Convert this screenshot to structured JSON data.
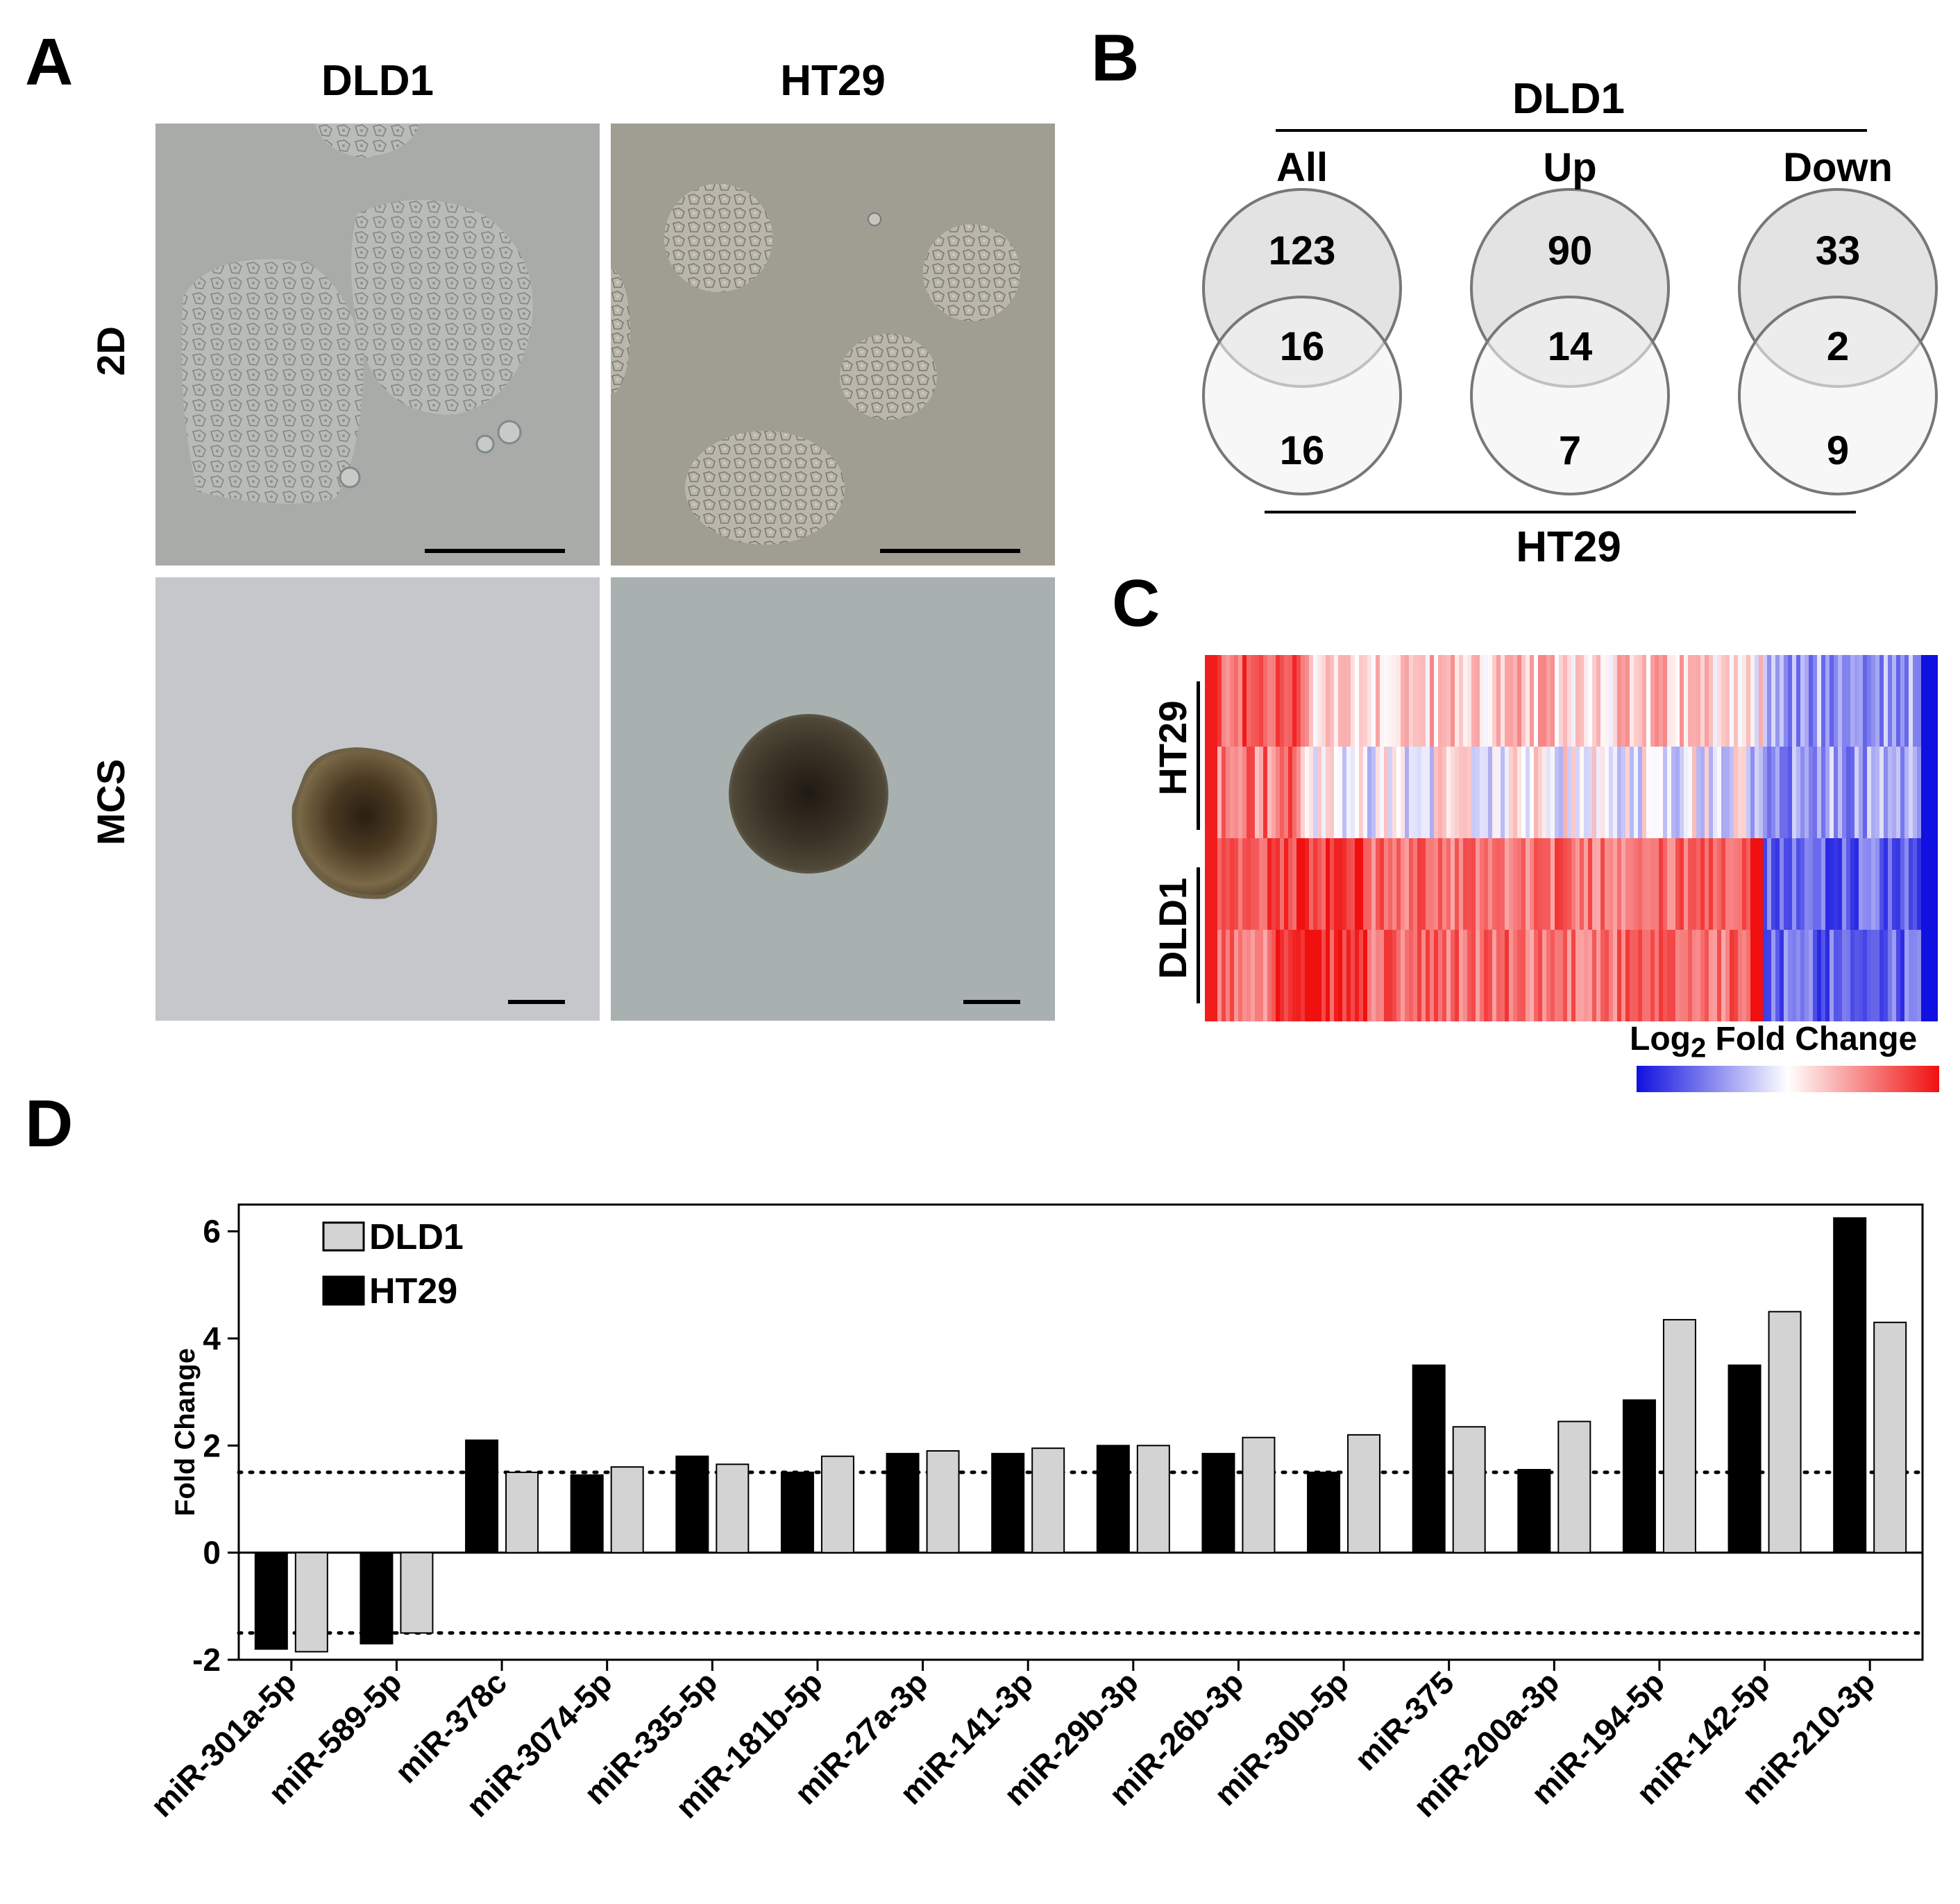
{
  "panels": {
    "a": {
      "letter": "A",
      "columns": [
        "DLD1",
        "HT29"
      ],
      "rows": [
        "2D",
        "MCS"
      ]
    },
    "b": {
      "letter": "B",
      "top_label": "DLD1",
      "bottom_label": "HT29",
      "groups": [
        {
          "label": "All",
          "top": "123",
          "overlap": "16",
          "bottom": "16"
        },
        {
          "label": "Up",
          "top": "90",
          "overlap": "14",
          "bottom": "7"
        },
        {
          "label": "Down",
          "top": "33",
          "overlap": "2",
          "bottom": "9"
        }
      ]
    },
    "c": {
      "letter": "C",
      "row_groups": [
        "HT29",
        "DLD1"
      ],
      "legend_label_main": "Log",
      "legend_label_sub": "2",
      "legend_label_rest": " Fold Change",
      "colors": {
        "low": "#1010e0",
        "mid": "#ffffff",
        "high": "#f01010"
      }
    },
    "d": {
      "letter": "D"
    }
  },
  "chart_data": {
    "type": "bar",
    "ylabel": "Fold Change",
    "ylim": [
      -2,
      6.5
    ],
    "yticks": [
      "6",
      "4",
      "2",
      "0",
      "-2"
    ],
    "threshold_lines": [
      1.5,
      -1.5
    ],
    "categories": [
      "miR-301a-5p",
      "miR-589-5p",
      "miR-378c",
      "miR-3074-5p",
      "miR-335-5p",
      "miR-181b-5p",
      "miR-27a-3p",
      "miR-141-3p",
      "miR-29b-3p",
      "miR-26b-3p",
      "miR-30b-5p",
      "miR-375",
      "miR-200a-3p",
      "miR-194-5p",
      "miR-142-5p",
      "miR-210-3p"
    ],
    "series": [
      {
        "name": "HT29",
        "color": "#000000",
        "values": [
          -1.8,
          -1.7,
          2.1,
          1.45,
          1.8,
          1.5,
          1.85,
          1.85,
          2.0,
          1.85,
          1.5,
          3.5,
          1.55,
          2.85,
          3.5,
          6.25
        ]
      },
      {
        "name": "DLD1",
        "color": "#d3d3d3",
        "values": [
          -1.85,
          -1.5,
          1.5,
          1.6,
          1.65,
          1.8,
          1.9,
          1.95,
          2.0,
          2.15,
          2.2,
          2.35,
          2.45,
          4.35,
          4.5,
          4.3
        ]
      }
    ],
    "legend_order": [
      "DLD1",
      "HT29"
    ],
    "legend_position": "top-left"
  }
}
